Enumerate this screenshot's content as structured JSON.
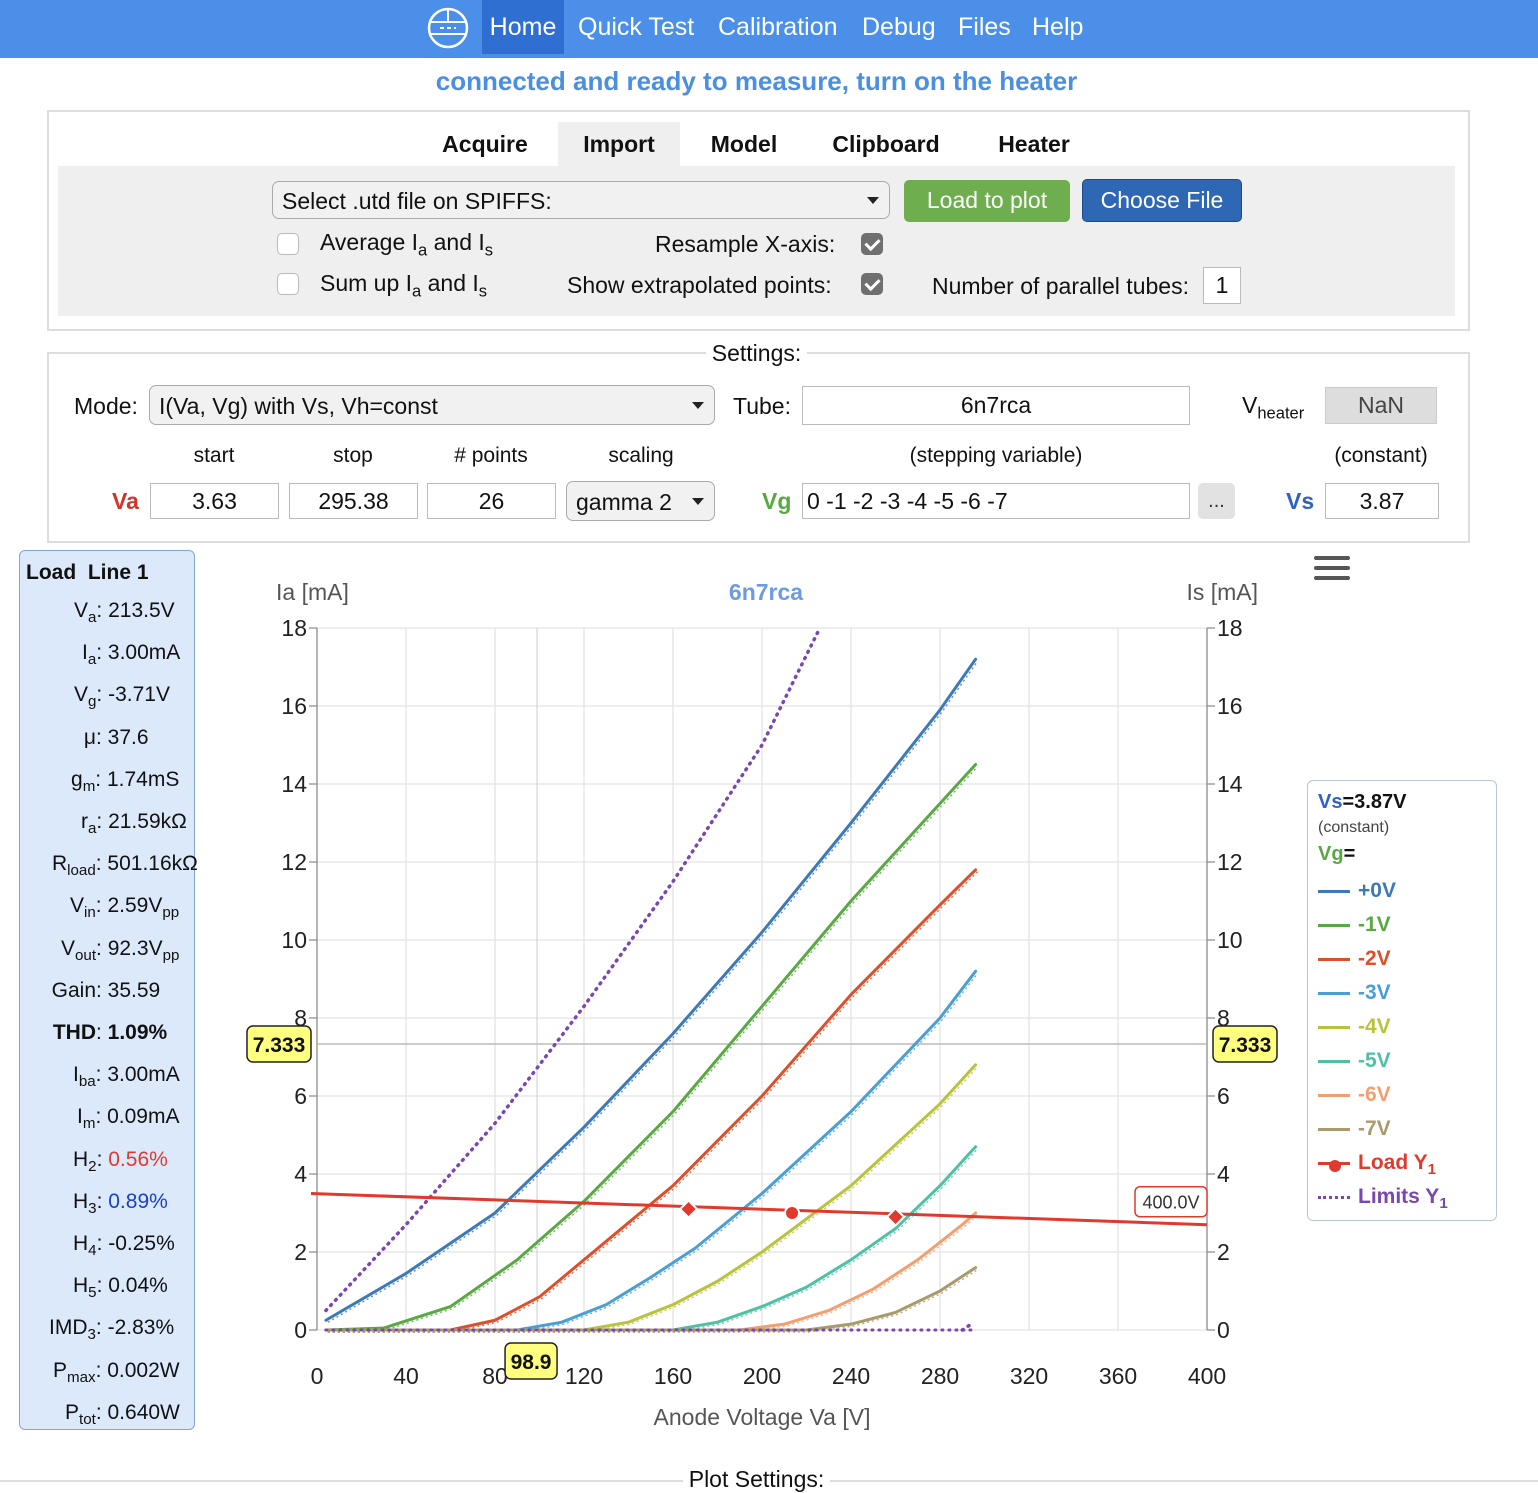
{
  "nav": {
    "items": [
      "Home",
      "Quick Test",
      "Calibration",
      "Debug",
      "Files",
      "Help"
    ]
  },
  "status": "connected and ready to measure, turn on the heater",
  "tabs": [
    "Acquire",
    "Import",
    "Model",
    "Clipboard",
    "Heater"
  ],
  "import": {
    "file_select": "Select .utd file on SPIFFS:",
    "load_button": "Load to plot",
    "choose_button": "Choose File",
    "average_label": "Average I",
    "sum_label": "Sum up I",
    "and": "and I",
    "sub_a": "a",
    "sub_s": "s",
    "resample_label": "Resample X-axis:",
    "extrapolated_label": "Show extrapolated points:",
    "parallel_label": "Number of parallel tubes:",
    "parallel_value": "1"
  },
  "settings": {
    "legend": "Settings:",
    "mode_label": "Mode:",
    "mode_value": "I(Va, Vg) with Vs, Vh=const",
    "tube_label": "Tube:",
    "tube_value": "6n7rca",
    "vheater_label": "V",
    "vheater_sub": "heater",
    "vheater_value": "NaN",
    "col_start": "start",
    "col_stop": "stop",
    "col_points": "# points",
    "col_scaling": "scaling",
    "col_stepping": "(stepping variable)",
    "col_constant": "(constant)",
    "va_label": "Va",
    "va_start": "3.63",
    "va_stop": "295.38",
    "va_points": "26",
    "scaling_value": "gamma 2",
    "vg_label": "Vg",
    "vg_value": "0 -1 -2 -3 -4 -5 -6 -7",
    "more_button": "...",
    "vs_label": "Vs",
    "vs_value": "3.87"
  },
  "loadline": {
    "title": "Load  Line 1",
    "rows": [
      {
        "k": "V",
        "sub": "a",
        "v": "213.5V",
        "color": "#111"
      },
      {
        "k": "I",
        "sub": "a",
        "v": "3.00mA",
        "color": "#111"
      },
      {
        "k": "V",
        "sub": "g",
        "v": "-3.71V",
        "color": "#111"
      },
      {
        "k": "μ",
        "sub": "",
        "v": "37.6",
        "color": "#111"
      },
      {
        "k": "g",
        "sub": "m",
        "v": "1.74mS",
        "color": "#111"
      },
      {
        "k": "r",
        "sub": "a",
        "v": "21.59kΩ",
        "color": "#111"
      },
      {
        "k": "R",
        "sub": "load",
        "v": "501.16kΩ",
        "color": "#111"
      },
      {
        "k": "V",
        "sub": "in",
        "v": "2.59V",
        "vsub": "pp",
        "color": "#111"
      },
      {
        "k": "V",
        "sub": "out",
        "v": "92.3V",
        "vsub": "pp",
        "color": "#111"
      },
      {
        "k": "Gain",
        "sub": "",
        "v": "35.59",
        "color": "#111"
      },
      {
        "k": "THD",
        "sub": "",
        "v": "1.09%",
        "color": "#111",
        "bold": true
      },
      {
        "k": "I",
        "sub": "ba",
        "v": "3.00mA",
        "color": "#111"
      },
      {
        "k": "I",
        "sub": "m",
        "v": "0.09mA",
        "color": "#111"
      },
      {
        "k": "H",
        "sub": "2",
        "v": "0.56%",
        "color": "#e03a2e"
      },
      {
        "k": "H",
        "sub": "3",
        "v": "0.89%",
        "color": "#1a3fc9"
      },
      {
        "k": "H",
        "sub": "4",
        "v": "-0.25%",
        "color": "#111"
      },
      {
        "k": "H",
        "sub": "5",
        "v": "0.04%",
        "color": "#111"
      },
      {
        "k": "IMD",
        "sub": "3",
        "v": "-2.83%",
        "color": "#111"
      },
      {
        "k": "P",
        "sub": "max",
        "v": "0.002W",
        "color": "#111"
      },
      {
        "k": "P",
        "sub": "tot",
        "v": "0.640W",
        "color": "#111"
      }
    ]
  },
  "chart_data": {
    "type": "line",
    "title": "6n7rca",
    "xlabel": "Anode Voltage Va [V]",
    "ylabel": "Ia [mA]",
    "ylabel_right": "Is [mA]",
    "xlim": [
      0,
      400
    ],
    "ylim": [
      0,
      18
    ],
    "xticks": [
      0,
      40,
      80,
      120,
      160,
      200,
      240,
      280,
      320,
      360,
      400
    ],
    "yticks": [
      0,
      2,
      4,
      6,
      8,
      10,
      12,
      14,
      16,
      18
    ],
    "grid": true,
    "crosshair": {
      "x": 98.9,
      "y": 7.333,
      "x_label": "98.9",
      "y_label": "7.333"
    },
    "legend": {
      "position": "right",
      "vs_title": "Vs",
      "vs_value": "=3.87V",
      "vs_note": "(constant)",
      "vg_title": "Vg",
      "vg_eq": "="
    },
    "series": [
      {
        "name": "+0V",
        "color": "#3d7ab5",
        "x": [
          4,
          40,
          80,
          120,
          160,
          200,
          240,
          280,
          296
        ],
        "y": [
          0.25,
          1.45,
          3.0,
          5.2,
          7.6,
          10.2,
          13.0,
          15.9,
          17.2
        ]
      },
      {
        "name": "-1V",
        "color": "#5aa843",
        "x": [
          4,
          30,
          60,
          90,
          120,
          160,
          200,
          240,
          280,
          296
        ],
        "y": [
          0,
          0.05,
          0.6,
          1.8,
          3.3,
          5.6,
          8.3,
          11.0,
          13.5,
          14.5
        ]
      },
      {
        "name": "-2V",
        "color": "#d9512c",
        "x": [
          4,
          60,
          80,
          100,
          120,
          160,
          200,
          240,
          280,
          296
        ],
        "y": [
          0,
          0,
          0.25,
          0.85,
          1.8,
          3.7,
          6.0,
          8.6,
          10.9,
          11.8
        ]
      },
      {
        "name": "-3V",
        "color": "#4a9ed1",
        "x": [
          4,
          90,
          110,
          130,
          150,
          170,
          200,
          240,
          280,
          296
        ],
        "y": [
          0,
          0,
          0.2,
          0.65,
          1.35,
          2.1,
          3.5,
          5.6,
          8.0,
          9.2
        ]
      },
      {
        "name": "-4V",
        "color": "#b8c23a",
        "x": [
          4,
          120,
          140,
          160,
          180,
          200,
          240,
          280,
          296
        ],
        "y": [
          0,
          0,
          0.2,
          0.65,
          1.25,
          2.0,
          3.7,
          5.8,
          6.8
        ]
      },
      {
        "name": "-5V",
        "color": "#4fc0a5",
        "x": [
          4,
          160,
          180,
          200,
          220,
          240,
          260,
          280,
          296
        ],
        "y": [
          0,
          0,
          0.2,
          0.6,
          1.1,
          1.8,
          2.6,
          3.7,
          4.7
        ]
      },
      {
        "name": "-6V",
        "color": "#f0a070",
        "x": [
          4,
          190,
          210,
          230,
          250,
          270,
          290,
          296
        ],
        "y": [
          0,
          0,
          0.15,
          0.5,
          1.05,
          1.8,
          2.7,
          3.0
        ]
      },
      {
        "name": "-7V",
        "color": "#a89a6a",
        "x": [
          4,
          220,
          240,
          260,
          280,
          296
        ],
        "y": [
          0,
          0,
          0.15,
          0.45,
          1.0,
          1.6
        ]
      }
    ],
    "load_line": {
      "name": "Load Y",
      "sub": "1",
      "color": "#e03a2e",
      "x": [
        0,
        400
      ],
      "y": [
        3.5,
        2.7
      ],
      "points_x": [
        167,
        213.5,
        260
      ],
      "points_y": [
        3.1,
        3.0,
        2.9
      ],
      "end_label": "400.0V"
    },
    "limits": {
      "name": "Limits Y",
      "sub": "1",
      "color": "#7b46b0",
      "x": [
        4,
        40,
        80,
        120,
        160,
        200,
        226
      ],
      "y": [
        0.5,
        2.7,
        5.3,
        8.3,
        11.5,
        15.0,
        18.0
      ],
      "tail_x": [
        290,
        294
      ],
      "tail_y": [
        0,
        0.15
      ]
    }
  },
  "plot_settings_label": "Plot Settings:"
}
